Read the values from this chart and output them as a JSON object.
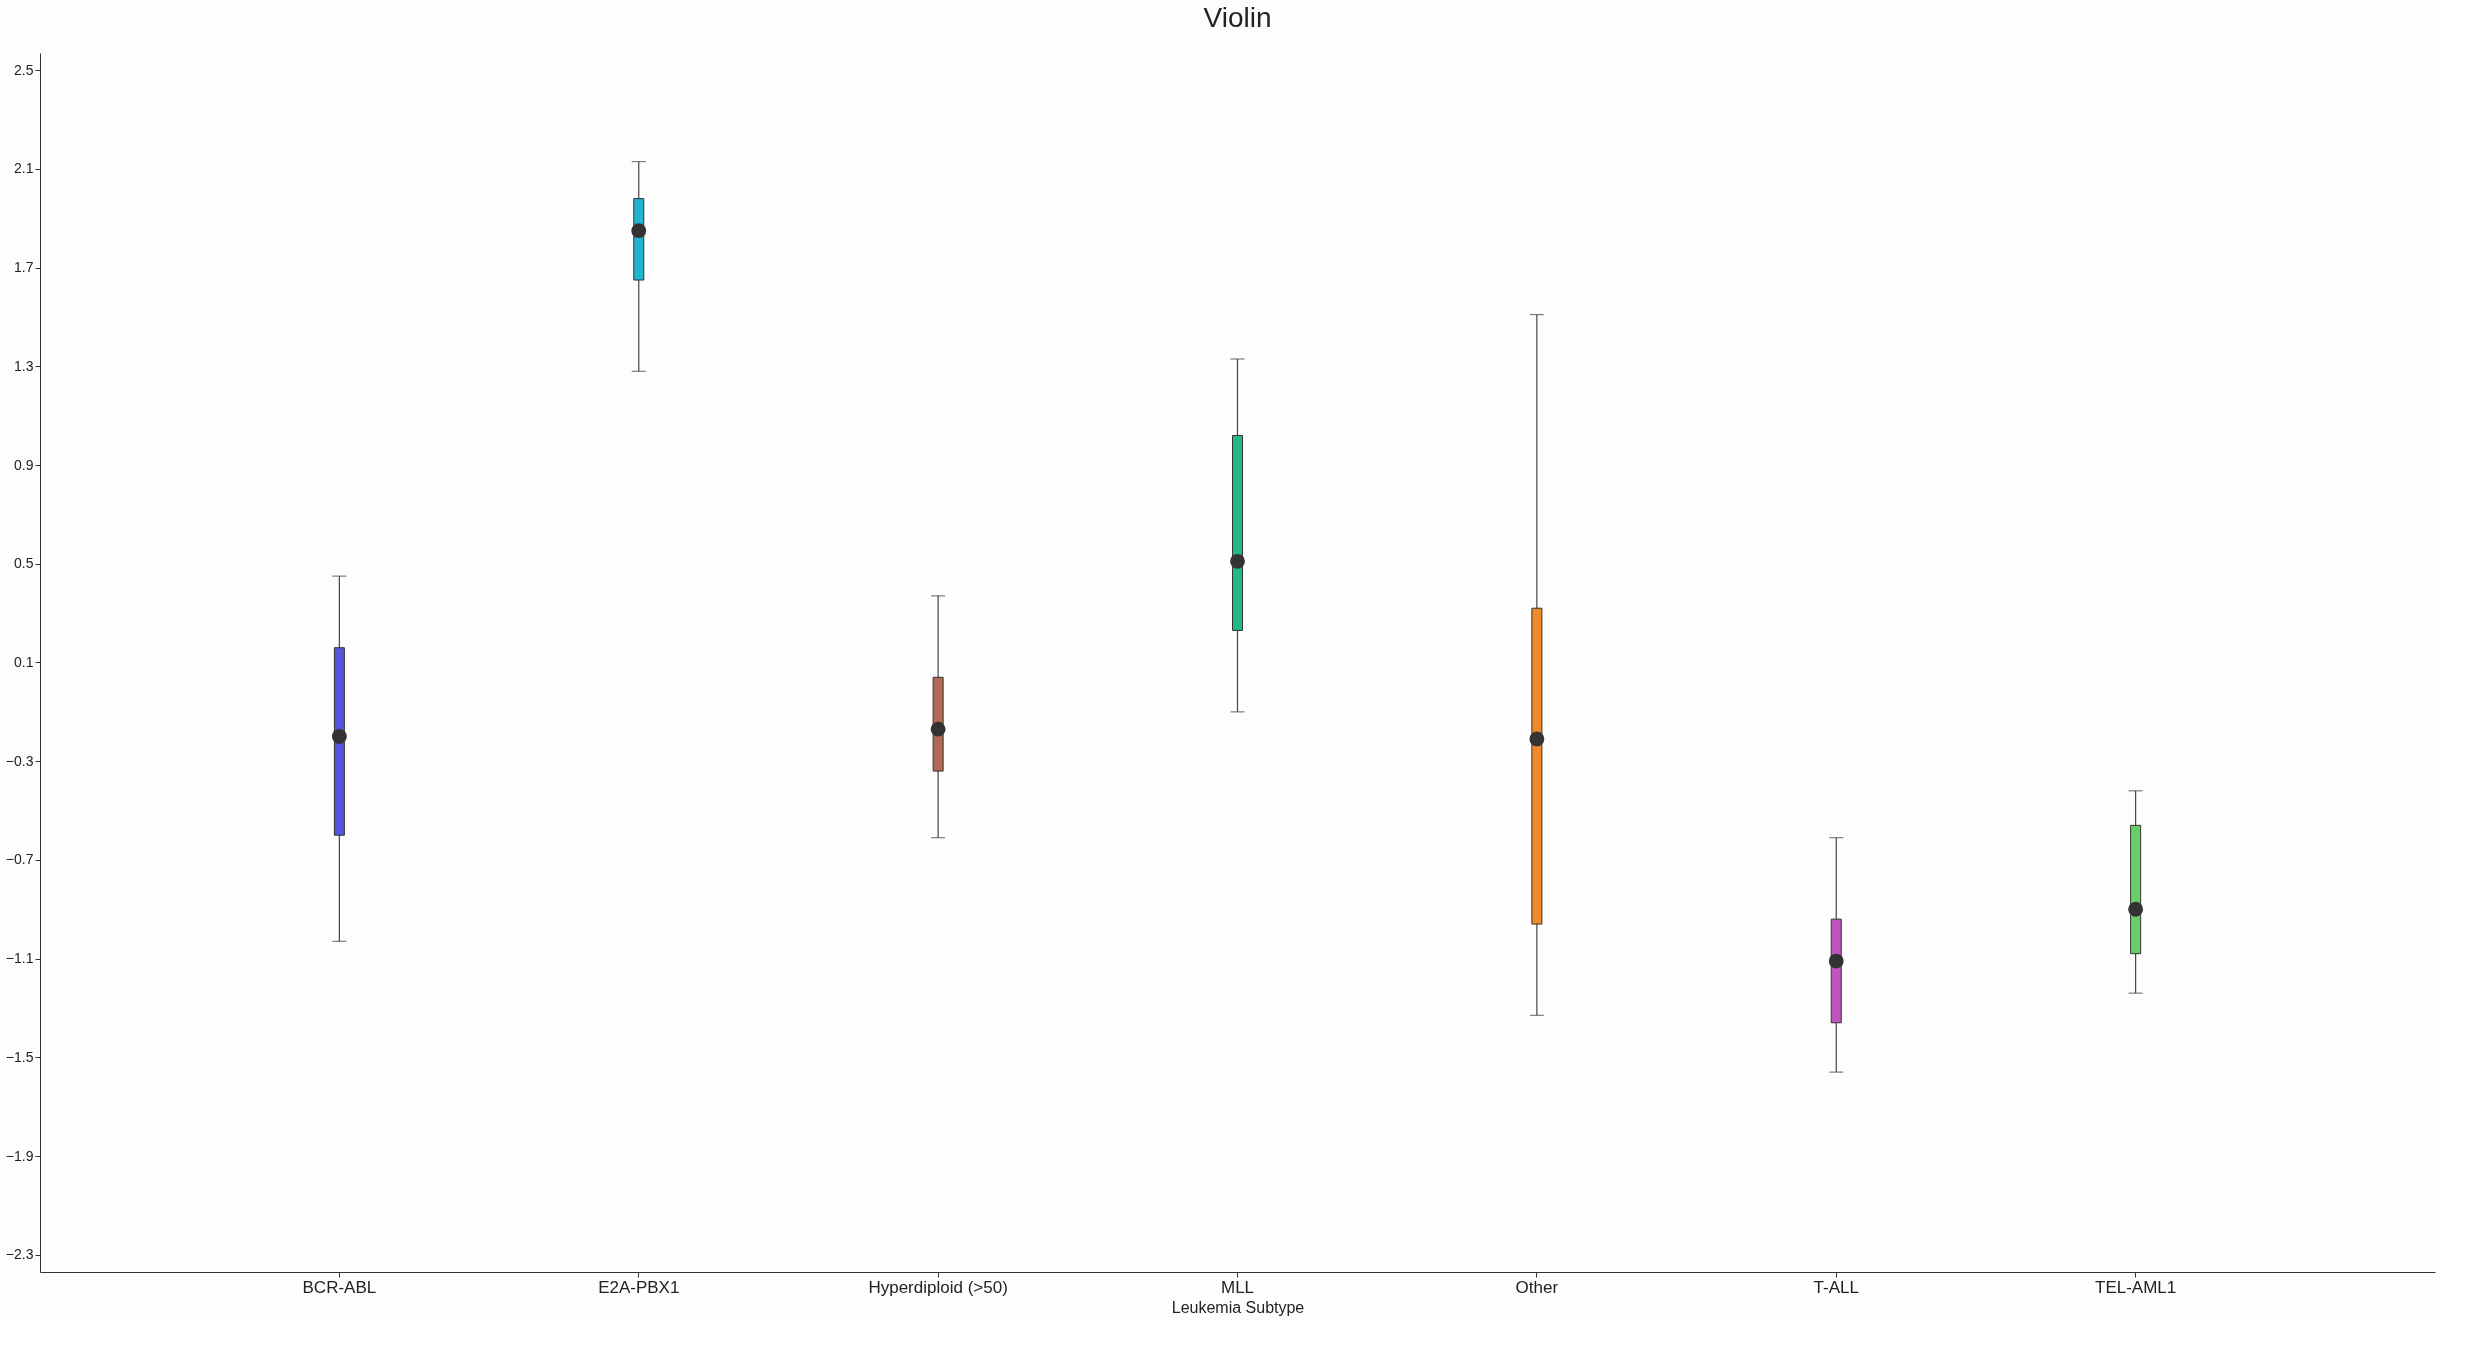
{
  "chart_data": {
    "type": "box",
    "title": "Violin",
    "xlabel": "Leukemia Subtype",
    "categories": [
      "BCR-ABL",
      "E2A-PBX1",
      "Hyperdiploid (>50)",
      "MLL",
      "Other",
      "T-ALL",
      "TEL-AML1"
    ],
    "colors": [
      "#5555dd",
      "#22b5d0",
      "#b06a55",
      "#22b888",
      "#f08a2a",
      "#c055c0",
      "#66d066"
    ],
    "boxes": [
      {
        "low": -1.03,
        "q1": -0.6,
        "median": -0.2,
        "q3": 0.16,
        "high": 0.45
      },
      {
        "low": 1.28,
        "q1": 1.65,
        "median": 1.85,
        "q3": 1.98,
        "high": 2.13
      },
      {
        "low": -0.61,
        "q1": -0.34,
        "median": -0.17,
        "q3": 0.04,
        "high": 0.37
      },
      {
        "low": -0.1,
        "q1": 0.23,
        "median": 0.51,
        "q3": 1.02,
        "high": 1.33
      },
      {
        "low": -1.33,
        "q1": -0.96,
        "median": -0.21,
        "q3": 0.32,
        "high": 1.51
      },
      {
        "low": -1.56,
        "q1": -1.36,
        "median": -1.11,
        "q3": -0.94,
        "high": -0.61
      },
      {
        "low": -1.24,
        "q1": -1.08,
        "median": -0.9,
        "q3": -0.56,
        "high": -0.42
      }
    ],
    "ylim": [
      -2.37,
      2.57
    ],
    "yticks": [
      -2.3,
      -1.9,
      -1.5,
      -1.1,
      -0.7,
      -0.3,
      0.1,
      0.5,
      0.9,
      1.3,
      1.7,
      2.1,
      2.5
    ],
    "grid": false
  }
}
